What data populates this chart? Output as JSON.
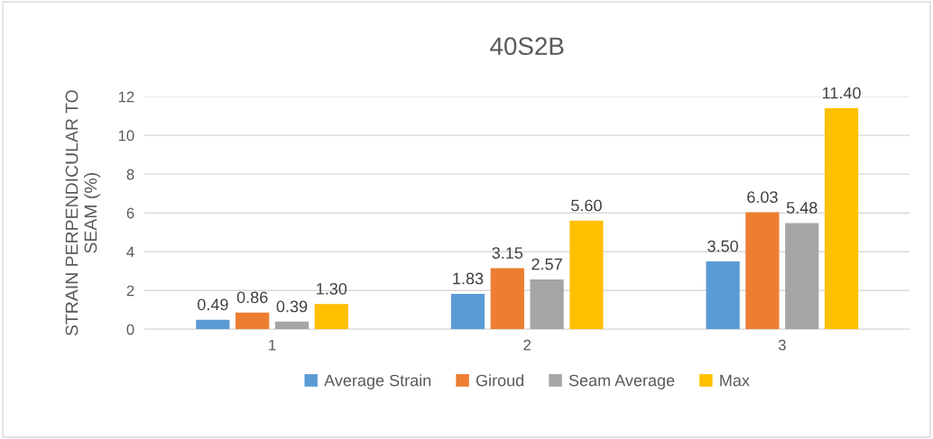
{
  "chart_data": {
    "type": "bar",
    "title": "40S2B",
    "ylabel": "STRAIN PERPENDICULAR TO SEAM (%)",
    "categories": [
      "1",
      "2",
      "3"
    ],
    "series": [
      {
        "name": "Average Strain",
        "color": "#5b9bd5",
        "values": [
          0.49,
          1.83,
          3.5
        ],
        "value_labels": [
          "0.49",
          "1.83",
          "3.50"
        ]
      },
      {
        "name": "Giroud",
        "color": "#ed7d31",
        "values": [
          0.86,
          3.15,
          6.03
        ],
        "value_labels": [
          "0.86",
          "3.15",
          "6.03"
        ]
      },
      {
        "name": "Seam Average",
        "color": "#a5a5a5",
        "values": [
          0.39,
          2.57,
          5.48
        ],
        "value_labels": [
          "0.39",
          "2.57",
          "5.48"
        ]
      },
      {
        "name": "Max",
        "color": "#ffc000",
        "values": [
          1.3,
          5.6,
          11.4
        ],
        "value_labels": [
          "1.30",
          "5.60",
          "11.40"
        ]
      }
    ],
    "ylim": [
      0,
      12
    ],
    "yticks": [
      0,
      2,
      4,
      6,
      8,
      10,
      12
    ],
    "grid": "y",
    "legend": "bottom"
  }
}
